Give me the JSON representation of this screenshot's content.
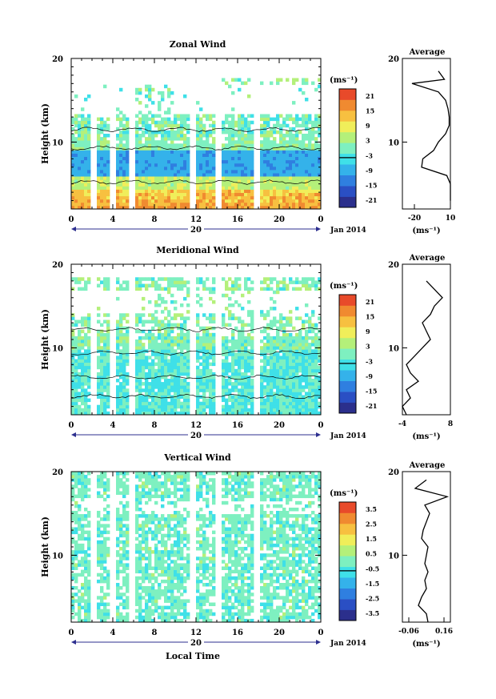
{
  "panels": [
    {
      "title": "Zonal Wind",
      "ylabel": "Height (km)",
      "yticks": [
        "20",
        "10"
      ],
      "xticks": [
        "0",
        "4",
        "8",
        "12",
        "16",
        "20",
        "0"
      ],
      "date_center": "20",
      "date_label": "Jan 2014",
      "unit_label": "(ms⁻¹)",
      "cbar_ticks": [
        "21",
        "15",
        "9",
        "3",
        "-3",
        "-9",
        "-15",
        "-21"
      ],
      "avg_title": "Average",
      "avg_yticks": [
        "20",
        "10"
      ],
      "avg_xticks": [
        "-20",
        "10"
      ],
      "avg_xlabel": "(ms⁻¹)"
    },
    {
      "title": "Meridional Wind",
      "ylabel": "Height (km)",
      "yticks": [
        "20",
        "10"
      ],
      "xticks": [
        "0",
        "4",
        "8",
        "12",
        "16",
        "20",
        "0"
      ],
      "date_center": "20",
      "date_label": "Jan 2014",
      "unit_label": "(ms⁻¹)",
      "cbar_ticks": [
        "21",
        "15",
        "9",
        "3",
        "-3",
        "-9",
        "-15",
        "-21"
      ],
      "avg_title": "Average",
      "avg_yticks": [
        "20",
        "10"
      ],
      "avg_xticks": [
        "-4",
        "8"
      ],
      "avg_xlabel": "(ms⁻¹)"
    },
    {
      "title": "Vertical Wind",
      "ylabel": "Height (km)",
      "yticks": [
        "20",
        "10"
      ],
      "xticks": [
        "0",
        "4",
        "8",
        "12",
        "16",
        "20",
        "0"
      ],
      "date_center": "20",
      "date_label": "Jan 2014",
      "unit_label": "(ms⁻¹)",
      "cbar_ticks": [
        "3.5",
        "2.5",
        "1.5",
        "0.5",
        "-0.5",
        "-1.5",
        "-2.5",
        "-3.5"
      ],
      "avg_title": "Average",
      "avg_yticks": [
        "20",
        "10"
      ],
      "avg_xticks": [
        "-0.06",
        "0.16"
      ],
      "avg_xlabel": "(ms⁻¹)"
    }
  ],
  "xlabel": "Local Time",
  "colors": {
    "palette": [
      "#2b2f8c",
      "#2a4fc4",
      "#2f7fe0",
      "#34b2ea",
      "#3fe0e8",
      "#7ef0c0",
      "#b4f07a",
      "#f0ee5a",
      "#f7c040",
      "#f08a30",
      "#e84a2a"
    ],
    "axis": "#000000",
    "date_arrow": "#2d2f8f"
  },
  "chart_data": [
    {
      "type": "heatmap",
      "title": "Zonal Wind",
      "xlabel": "",
      "ylabel": "Height (km)",
      "xlim": [
        0,
        24
      ],
      "ylim": [
        2,
        20
      ],
      "clim": [
        -24,
        24
      ],
      "data_gaps_hours": [
        [
          1.8,
          2.4
        ],
        [
          3.8,
          4.4
        ],
        [
          5.5,
          6.0
        ],
        [
          11.5,
          12.0
        ],
        [
          13.8,
          14.5
        ],
        [
          17.5,
          18.0
        ]
      ],
      "profile_km": [
        [
          3,
          12
        ],
        [
          4,
          13
        ],
        [
          5,
          14
        ],
        [
          6,
          7
        ],
        [
          7,
          -14
        ],
        [
          8,
          -13
        ],
        [
          9,
          -4
        ],
        [
          10,
          0
        ],
        [
          11,
          6
        ],
        [
          12,
          9
        ],
        [
          13,
          9
        ],
        [
          14,
          8
        ],
        [
          15,
          6
        ],
        [
          16,
          0
        ],
        [
          17,
          -22
        ],
        [
          17.5,
          5
        ],
        [
          18.5,
          0
        ]
      ],
      "average_xlim": [
        -30,
        10
      ]
    },
    {
      "type": "heatmap",
      "title": "Meridional Wind",
      "xlabel": "",
      "ylabel": "Height (km)",
      "xlim": [
        0,
        24
      ],
      "ylim": [
        2,
        20
      ],
      "clim": [
        -24,
        24
      ],
      "data_gaps_hours": [
        [
          1.8,
          2.4
        ],
        [
          3.8,
          4.4
        ],
        [
          5.5,
          6.0
        ],
        [
          11.5,
          12.0
        ],
        [
          13.8,
          14.5
        ],
        [
          17.5,
          18.0
        ]
      ],
      "profile_km": [
        [
          2,
          -3
        ],
        [
          3,
          -4
        ],
        [
          4,
          -2
        ],
        [
          5,
          -3
        ],
        [
          6,
          0
        ],
        [
          7,
          -2
        ],
        [
          8,
          -3
        ],
        [
          9,
          -1
        ],
        [
          10,
          1
        ],
        [
          11,
          3
        ],
        [
          12,
          2
        ],
        [
          13,
          1
        ],
        [
          14,
          3
        ],
        [
          15,
          4
        ],
        [
          16,
          6
        ],
        [
          17,
          4
        ],
        [
          18,
          2
        ]
      ],
      "average_xlim": [
        -4,
        8
      ]
    },
    {
      "type": "heatmap",
      "title": "Vertical Wind",
      "xlabel": "Local Time",
      "ylabel": "Height (km)",
      "xlim": [
        0,
        24
      ],
      "ylim": [
        2,
        20
      ],
      "clim": [
        -4,
        4
      ],
      "data_gaps_hours": [
        [
          1.8,
          2.4
        ],
        [
          3.8,
          4.4
        ],
        [
          5.5,
          6.0
        ],
        [
          11.5,
          12.0
        ],
        [
          13.8,
          14.5
        ],
        [
          17.5,
          18.0
        ]
      ],
      "profile_km": [
        [
          2,
          0.06
        ],
        [
          3,
          0.05
        ],
        [
          4,
          0.0
        ],
        [
          5,
          0.02
        ],
        [
          6,
          0.05
        ],
        [
          7,
          0.04
        ],
        [
          8,
          0.06
        ],
        [
          9,
          0.04
        ],
        [
          10,
          0.05
        ],
        [
          11,
          0.06
        ],
        [
          12,
          0.02
        ],
        [
          13,
          0.03
        ],
        [
          14,
          0.05
        ],
        [
          15,
          0.07
        ],
        [
          16,
          0.04
        ],
        [
          17,
          0.18
        ],
        [
          18,
          -0.02
        ],
        [
          19,
          0.05
        ]
      ],
      "average_xlim": [
        -0.1,
        0.2
      ]
    }
  ]
}
